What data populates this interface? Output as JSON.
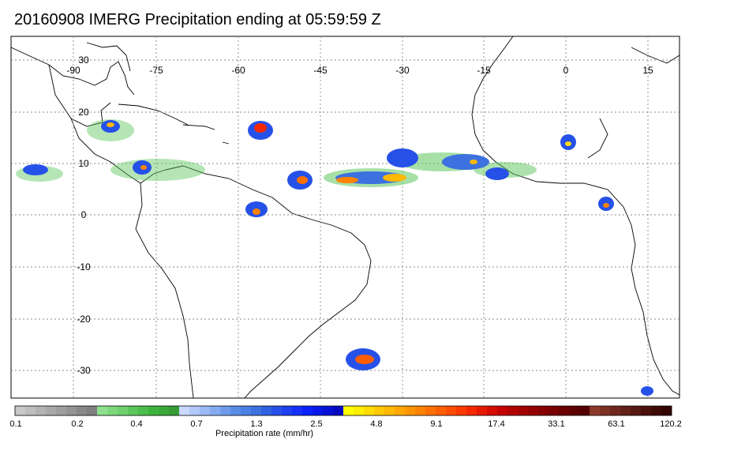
{
  "title": "20160908 IMERG Precipitation ending at 05:59:59 Z",
  "map": {
    "longitude_labels": [
      "-90",
      "-75",
      "-60",
      "-45",
      "-30",
      "-15",
      "0",
      "15"
    ],
    "latitude_labels": [
      "30",
      "20",
      "10",
      "0",
      "-10",
      "-20",
      "-30"
    ],
    "grid": "dotted",
    "longitudes": [
      -90,
      -75,
      -60,
      -45,
      -30,
      -15,
      0,
      15
    ],
    "latitudes": [
      30,
      20,
      10,
      0,
      -10,
      -20,
      -30
    ]
  },
  "colorbar": {
    "title": "Precipitation rate (mm/hr)",
    "tick_labels": [
      "0.1",
      "0.2",
      "0.4",
      "0.7",
      "1.3",
      "2.5",
      "4.8",
      "9.1",
      "17.4",
      "33.1",
      "63.1",
      "120.2"
    ],
    "colors": [
      "#c8c8c8",
      "#bdbdbd",
      "#b3b3b3",
      "#a8a8a8",
      "#9e9e9e",
      "#939393",
      "#898989",
      "#7f7f7f",
      "#8ee08e",
      "#7dd77d",
      "#6dcf6d",
      "#5cc65c",
      "#4cbd4c",
      "#3cb43c",
      "#3aa83a",
      "#359c35",
      "#c8d8ff",
      "#b1c9fa",
      "#9bbaf5",
      "#84abf0",
      "#6e9ceb",
      "#588de6",
      "#4a7fe3",
      "#3d71df",
      "#2f61e0",
      "#2651e8",
      "#1e40f0",
      "#1530f8",
      "#0a20fc",
      "#0818e8",
      "#0610d4",
      "#0408c0",
      "#ffff00",
      "#ffee00",
      "#ffdc00",
      "#ffcb00",
      "#ffb900",
      "#ffa700",
      "#ff9500",
      "#ff8300",
      "#ff7000",
      "#ff5e00",
      "#ff4c00",
      "#ff3900",
      "#f52800",
      "#e61a00",
      "#d60d00",
      "#c40000",
      "#b00000",
      "#a20000",
      "#940000",
      "#860000",
      "#780000",
      "#6a0000",
      "#5e0000",
      "#520000",
      "#8b3a2a",
      "#7d3024",
      "#70281e",
      "#632018",
      "#561812",
      "#4a110c",
      "#3e0a06",
      "#330400"
    ]
  }
}
